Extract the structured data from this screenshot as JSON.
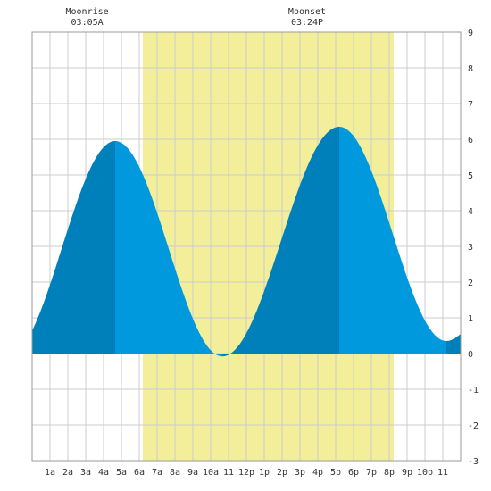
{
  "chart_data": {
    "type": "area",
    "title": "",
    "xlabel": "",
    "ylabel": "",
    "x_unit": "hour of day",
    "xlim": [
      0,
      24
    ],
    "ylim": [
      -3,
      9
    ],
    "y_ticks": [
      -3,
      -2,
      -1,
      0,
      1,
      2,
      3,
      4,
      5,
      6,
      7,
      8,
      9
    ],
    "x_ticks": [
      {
        "hour": 1,
        "label": "1a"
      },
      {
        "hour": 2,
        "label": "2a"
      },
      {
        "hour": 3,
        "label": "3a"
      },
      {
        "hour": 4,
        "label": "4a"
      },
      {
        "hour": 5,
        "label": "5a"
      },
      {
        "hour": 6,
        "label": "6a"
      },
      {
        "hour": 7,
        "label": "7a"
      },
      {
        "hour": 8,
        "label": "8a"
      },
      {
        "hour": 9,
        "label": "9a"
      },
      {
        "hour": 10,
        "label": "10a"
      },
      {
        "hour": 11,
        "label": "11"
      },
      {
        "hour": 12,
        "label": "12p"
      },
      {
        "hour": 13,
        "label": "1p"
      },
      {
        "hour": 14,
        "label": "2p"
      },
      {
        "hour": 15,
        "label": "3p"
      },
      {
        "hour": 16,
        "label": "4p"
      },
      {
        "hour": 17,
        "label": "5p"
      },
      {
        "hour": 18,
        "label": "6p"
      },
      {
        "hour": 19,
        "label": "7p"
      },
      {
        "hour": 20,
        "label": "8p"
      },
      {
        "hour": 21,
        "label": "9p"
      },
      {
        "hour": 22,
        "label": "10p"
      },
      {
        "hour": 23,
        "label": "11"
      }
    ],
    "grid": true,
    "daylight": {
      "start": 6.2,
      "end": 20.25
    },
    "tide_extremes": [
      {
        "hour": 4.65,
        "height": 5.95,
        "kind": "high"
      },
      {
        "hour": 10.65,
        "height": -0.08,
        "kind": "low"
      },
      {
        "hour": 17.2,
        "height": 6.35,
        "kind": "high"
      },
      {
        "hour": 23.2,
        "height": 0.35,
        "kind": "low"
      }
    ],
    "tide_start": {
      "hour": 0,
      "height": 1.7
    },
    "tide_end": {
      "hour": 24,
      "height": 0.55
    },
    "moon_events": [
      {
        "label": "Moonrise",
        "time": "03:05A",
        "hour": 3.08
      },
      {
        "label": "Moonset",
        "time": "03:24P",
        "hour": 15.4
      }
    ],
    "colors": {
      "tide_light": "#0099dd",
      "tide_dark": "#0080bb",
      "daylight": "#f2ee9a",
      "grid": "#cccccc",
      "frame": "#999999"
    }
  }
}
